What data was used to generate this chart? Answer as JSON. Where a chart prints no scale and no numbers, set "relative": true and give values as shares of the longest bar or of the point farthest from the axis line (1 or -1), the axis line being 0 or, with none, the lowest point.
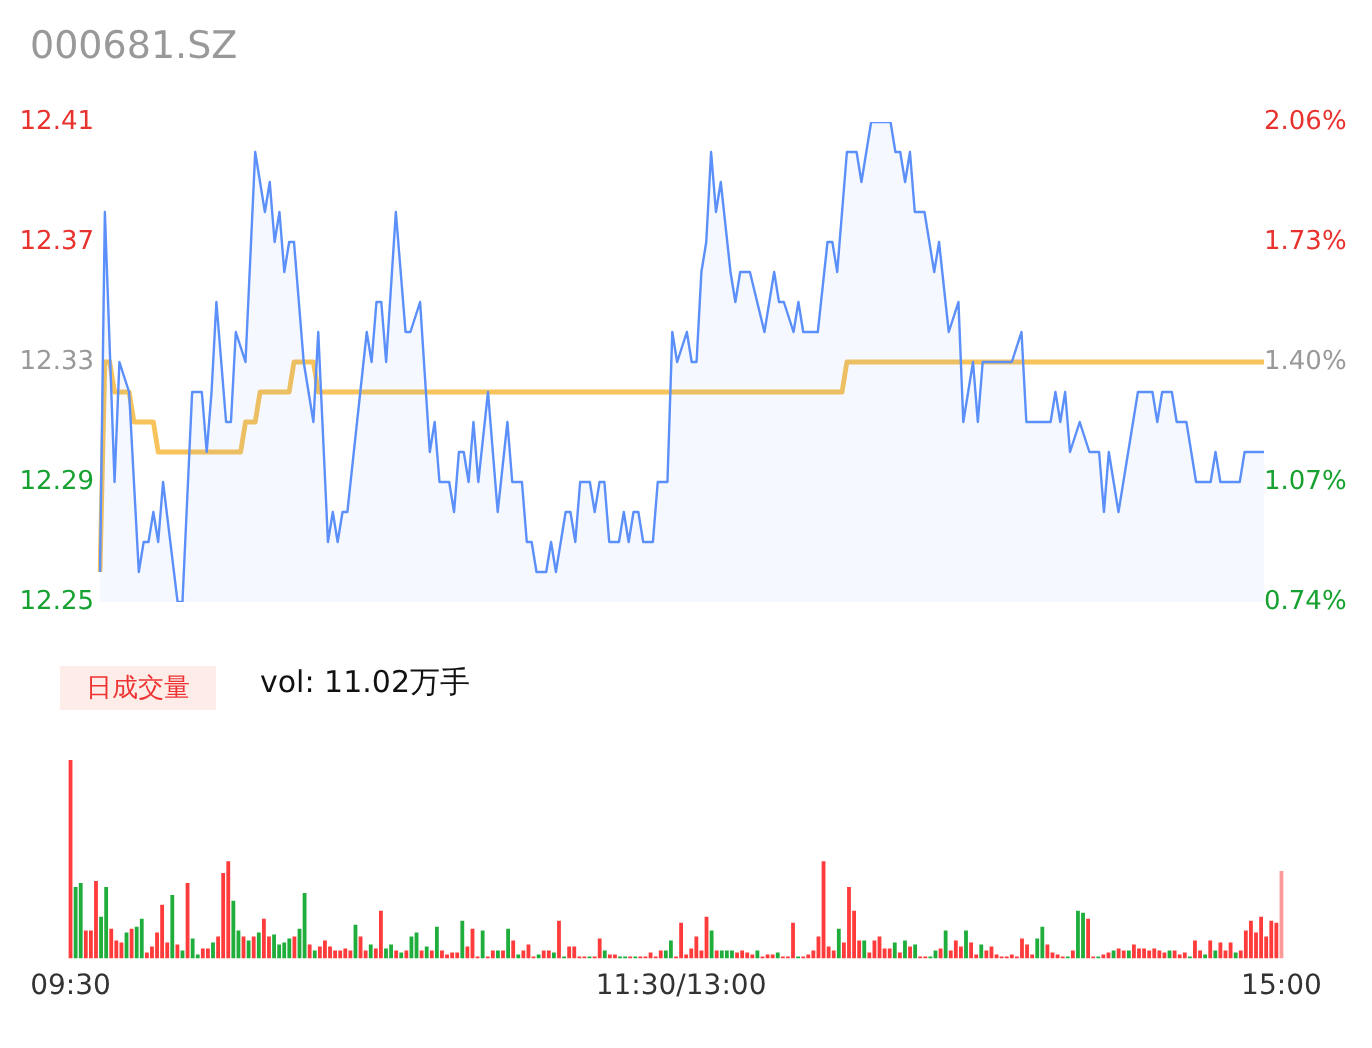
{
  "chart_data": [
    {
      "type": "area",
      "title": "000681.SZ",
      "marker": "none",
      "ylim": [
        12.25,
        12.41
      ],
      "yticks": [
        12.25,
        12.29,
        12.33,
        12.37,
        12.41
      ],
      "y2lim": [
        0.74,
        2.06
      ],
      "y2ticks": [
        {
          "value": 0.74,
          "label": "0.74%"
        },
        {
          "value": 1.07,
          "label": "1.07%"
        },
        {
          "value": 1.4,
          "label": "1.40%"
        },
        {
          "value": 1.73,
          "label": "1.73%"
        },
        {
          "value": 2.06,
          "label": "2.06%"
        }
      ],
      "tick_labels": "y",
      "categories": [
        null,
        null,
        null,
        null,
        null,
        null,
        null,
        null,
        null,
        null,
        null,
        null,
        null,
        null,
        null,
        null,
        null,
        null,
        null,
        null,
        null,
        null,
        null,
        null,
        null,
        null,
        null,
        null,
        null,
        null,
        null,
        null,
        null,
        null,
        null,
        null,
        null,
        null,
        null,
        null,
        null,
        null,
        null,
        null,
        null,
        null,
        null,
        null,
        null,
        null,
        null,
        null,
        null,
        null,
        null,
        null,
        null,
        null,
        null,
        null,
        null,
        null,
        null,
        null,
        null,
        null,
        null,
        null,
        null,
        null,
        null,
        null,
        null,
        null,
        null,
        null,
        null,
        null,
        null,
        null,
        null,
        null,
        null,
        null,
        null,
        null,
        null,
        null,
        null,
        null,
        null,
        null,
        null,
        null,
        null,
        null,
        null,
        null,
        null,
        null,
        null,
        null,
        null,
        null,
        null,
        null,
        null,
        null,
        null,
        null,
        null,
        null,
        null,
        null,
        null,
        null,
        null,
        null,
        null,
        null,
        null,
        null,
        null,
        null,
        null,
        null,
        null,
        null,
        null,
        null,
        null,
        null,
        null,
        null,
        null,
        null,
        null,
        null,
        null,
        null,
        null,
        null,
        null,
        null,
        null,
        null,
        null,
        null,
        null,
        null,
        null,
        null,
        null,
        null,
        null,
        null,
        null,
        null,
        null,
        null,
        null,
        null,
        null,
        null,
        null,
        null,
        null,
        null,
        null,
        null,
        null,
        null,
        null,
        null,
        null,
        null,
        null,
        null,
        null,
        null,
        null,
        null,
        null,
        null,
        null,
        null,
        null,
        null,
        null,
        null,
        null,
        null,
        null,
        null,
        null,
        null,
        null,
        null,
        null,
        null,
        null,
        null,
        null,
        null,
        null,
        null,
        null,
        null,
        null,
        null,
        null,
        null,
        null,
        null,
        null,
        null,
        null,
        null,
        null,
        null,
        null,
        null,
        null,
        null,
        null,
        null,
        null,
        null,
        null,
        null,
        null,
        null,
        null,
        null,
        null,
        null,
        null,
        null,
        null,
        null,
        null
      ],
      "series": [
        {
          "type": "area",
          "color": "#5b8ff9",
          "values": [
            12.26,
            12.38,
            null,
            12.29,
            12.33,
            null,
            12.32,
            null,
            12.26,
            12.27,
            12.27,
            12.28,
            12.27,
            12.29,
            null,
            null,
            12.25,
            12.25,
            null,
            12.32,
            null,
            12.32,
            12.3,
            12.32,
            12.35,
            null,
            12.31,
            12.31,
            12.34,
            null,
            12.33,
            null,
            12.4,
            null,
            12.38,
            12.39,
            12.37,
            12.38,
            12.36,
            12.37,
            12.37,
            null,
            12.33,
            null,
            12.31,
            12.34,
            null,
            12.27,
            12.28,
            12.27,
            12.28,
            12.28,
            null,
            null,
            null,
            12.34,
            12.33,
            12.35,
            12.35,
            12.33,
            null,
            12.38,
            null,
            12.34,
            12.34,
            null,
            12.35,
            null,
            12.3,
            12.31,
            12.29,
            null,
            12.29,
            12.28,
            12.3,
            12.3,
            12.29,
            12.31,
            12.29,
            null,
            12.32,
            null,
            12.28,
            null,
            12.31,
            12.29,
            null,
            12.29,
            12.27,
            12.27,
            12.26,
            null,
            12.26,
            12.27,
            12.26,
            null,
            12.28,
            12.28,
            12.27,
            12.29,
            null,
            12.29,
            12.28,
            12.29,
            12.29,
            12.27,
            null,
            12.27,
            12.28,
            12.27,
            12.28,
            12.28,
            12.27,
            null,
            12.27,
            12.29,
            null,
            12.29,
            12.34,
            12.33,
            null,
            12.34,
            12.33,
            12.33,
            12.36,
            12.37,
            12.4,
            12.38,
            12.39,
            null,
            12.36,
            12.35,
            12.36,
            null,
            12.36,
            null,
            null,
            12.34,
            null,
            12.36,
            12.35,
            12.35,
            null,
            12.34,
            12.35,
            12.34,
            null,
            null,
            12.34,
            null,
            12.37,
            12.37,
            12.36,
            null,
            12.4,
            null,
            12.4,
            12.39,
            null,
            12.41,
            null,
            null,
            null,
            12.41,
            12.4,
            12.4,
            12.39,
            12.4,
            12.38,
            null,
            12.38,
            12.37,
            12.36,
            12.37,
            null,
            12.34,
            null,
            12.35,
            12.31,
            null,
            12.33,
            12.31,
            12.33,
            null,
            null,
            null,
            null,
            null,
            12.33,
            null,
            12.34,
            12.31,
            null,
            null,
            null,
            null,
            12.31,
            12.32,
            12.31,
            12.32,
            12.3,
            null,
            12.31,
            null,
            12.3,
            null,
            12.3,
            12.28,
            12.3,
            null,
            12.28,
            null,
            12.3,
            null,
            12.32,
            null,
            null,
            12.32,
            12.31,
            12.32,
            null,
            12.32,
            12.31,
            null,
            12.31,
            null,
            12.29,
            null,
            null,
            12.29,
            12.3,
            12.29,
            null,
            null,
            null,
            12.29,
            12.3,
            null,
            null,
            null,
            12.3
          ]
        },
        {
          "type": "line",
          "color": "#f7c35a",
          "values": [
            12.26,
            12.33,
            12.33,
            12.32,
            null,
            null,
            12.32,
            12.31,
            null,
            null,
            null,
            12.31,
            12.3,
            null,
            null,
            null,
            null,
            null,
            null,
            null,
            null,
            null,
            null,
            null,
            null,
            null,
            null,
            null,
            null,
            12.3,
            12.31,
            null,
            12.31,
            12.32,
            null,
            null,
            null,
            null,
            null,
            12.32,
            12.33,
            null,
            null,
            null,
            12.33,
            12.32,
            null,
            null,
            null,
            null,
            null,
            null,
            null,
            null,
            null,
            null,
            null,
            null,
            null,
            null,
            null,
            null,
            null,
            null,
            null,
            null,
            null,
            null,
            null,
            null,
            null,
            null,
            null,
            null,
            null,
            null,
            null,
            null,
            null,
            null,
            null,
            null,
            null,
            null,
            null,
            null,
            null,
            null,
            null,
            null,
            null,
            null,
            null,
            null,
            null,
            null,
            null,
            null,
            null,
            null,
            null,
            null,
            null,
            null,
            null,
            null,
            null,
            null,
            null,
            null,
            null,
            null,
            null,
            null,
            null,
            null,
            null,
            null,
            null,
            null,
            null,
            null,
            null,
            null,
            null,
            null,
            null,
            null,
            null,
            null,
            null,
            null,
            null,
            null,
            null,
            null,
            null,
            null,
            null,
            null,
            null,
            null,
            null,
            null,
            null,
            null,
            null,
            null,
            null,
            null,
            null,
            null,
            null,
            12.32,
            12.33,
            null,
            null,
            null,
            null,
            null,
            null,
            null,
            null,
            null,
            null,
            null,
            null,
            null,
            null,
            null,
            null,
            null,
            null,
            null,
            null,
            null,
            null,
            null,
            null,
            null,
            null,
            null,
            null,
            null,
            null,
            null,
            null,
            null,
            null,
            null,
            null,
            null,
            null,
            null,
            null,
            null,
            null,
            null,
            null,
            null,
            null,
            null,
            null,
            null,
            null,
            null,
            null,
            null,
            null,
            null,
            null,
            null,
            null,
            null,
            null,
            null,
            null,
            null,
            null,
            null,
            null,
            null,
            null,
            null,
            null,
            null,
            null,
            null,
            null,
            null,
            null,
            null,
            null,
            null,
            null,
            null,
            null,
            null,
            null,
            null,
            12.33
          ]
        }
      ]
    },
    {
      "type": "bar",
      "relative": true,
      "tick_labels": "x",
      "annotations": [
        "日成交量",
        "vol: 11.02万手"
      ],
      "categories": [
        "09:30",
        null,
        null,
        null,
        null,
        null,
        null,
        null,
        null,
        null,
        null,
        null,
        null,
        null,
        null,
        null,
        null,
        null,
        null,
        null,
        null,
        null,
        null,
        null,
        null,
        null,
        null,
        null,
        null,
        null,
        null,
        null,
        null,
        null,
        null,
        null,
        null,
        null,
        null,
        null,
        null,
        null,
        null,
        null,
        null,
        null,
        null,
        null,
        null,
        null,
        null,
        null,
        null,
        null,
        null,
        null,
        null,
        null,
        null,
        null,
        null,
        null,
        null,
        null,
        null,
        null,
        null,
        null,
        null,
        null,
        null,
        null,
        null,
        null,
        null,
        null,
        null,
        null,
        null,
        null,
        null,
        null,
        null,
        null,
        null,
        null,
        null,
        null,
        null,
        null,
        null,
        null,
        null,
        null,
        null,
        null,
        null,
        null,
        null,
        null,
        null,
        null,
        null,
        null,
        null,
        null,
        null,
        null,
        null,
        null,
        null,
        null,
        null,
        null,
        null,
        null,
        null,
        null,
        null,
        null,
        "11:30/13:00",
        null,
        null,
        null,
        null,
        null,
        null,
        null,
        null,
        null,
        null,
        null,
        null,
        null,
        null,
        null,
        null,
        null,
        null,
        null,
        null,
        null,
        null,
        null,
        null,
        null,
        null,
        null,
        null,
        null,
        null,
        null,
        null,
        null,
        null,
        null,
        null,
        null,
        null,
        null,
        null,
        null,
        null,
        null,
        null,
        null,
        null,
        null,
        null,
        null,
        null,
        null,
        null,
        null,
        null,
        null,
        null,
        null,
        null,
        null,
        null,
        null,
        null,
        null,
        null,
        null,
        null,
        null,
        null,
        null,
        null,
        null,
        null,
        null,
        null,
        null,
        null,
        null,
        null,
        null,
        null,
        null,
        null,
        null,
        null,
        null,
        null,
        null,
        null,
        null,
        null,
        null,
        null,
        null,
        null,
        null,
        null,
        null,
        null,
        null,
        null,
        null,
        null,
        null,
        null,
        null,
        null,
        null,
        null,
        null,
        null,
        null,
        null,
        null,
        null,
        null,
        null,
        null,
        "15:00"
      ],
      "values": [
        1.0,
        0.36,
        0.38,
        0.14,
        0.14,
        0.39,
        0.21,
        0.36,
        0.15,
        0.09,
        0.08,
        0.13,
        0.15,
        0.16,
        0.2,
        0.03,
        0.06,
        0.13,
        0.27,
        0.08,
        0.32,
        0.07,
        0.04,
        0.38,
        0.1,
        0.02,
        0.05,
        0.05,
        0.08,
        0.11,
        0.43,
        0.49,
        0.29,
        0.14,
        0.11,
        0.09,
        0.11,
        0.13,
        0.2,
        0.11,
        0.12,
        0.07,
        0.08,
        0.1,
        0.11,
        0.15,
        0.33,
        0.07,
        0.04,
        0.06,
        0.09,
        0.06,
        0.04,
        0.04,
        0.05,
        0.04,
        0.17,
        0.11,
        0.04,
        0.07,
        0.05,
        0.24,
        0.05,
        0.07,
        0.04,
        0.03,
        0.04,
        0.11,
        0.13,
        0.04,
        0.06,
        0.04,
        0.16,
        0.04,
        0.02,
        0.03,
        0.03,
        0.19,
        0.06,
        0.15,
        0.01,
        0.14,
        0.01,
        0.04,
        0.04,
        0.04,
        0.15,
        0.09,
        0.02,
        0.04,
        0.07,
        0.01,
        0.02,
        0.04,
        0.04,
        0.03,
        0.19,
        0.01,
        0.06,
        0.06,
        0.01,
        0.01,
        0.01,
        0.01,
        0.1,
        0.04,
        0.02,
        0.02,
        0.01,
        0.01,
        0.01,
        0.01,
        0.01,
        0.01,
        0.03,
        0.01,
        0.04,
        0.04,
        0.09,
        0.01,
        0.18,
        0.02,
        0.05,
        0.11,
        0.04,
        0.21,
        0.14,
        0.04,
        0.04,
        0.04,
        0.04,
        0.03,
        0.04,
        0.03,
        0.02,
        0.04,
        0.01,
        0.02,
        0.02,
        0.03,
        0.01,
        0.01,
        0.18,
        0.01,
        0.01,
        0.02,
        0.04,
        0.11,
        0.49,
        0.06,
        0.04,
        0.15,
        0.08,
        0.36,
        0.24,
        0.09,
        0.09,
        0.03,
        0.09,
        0.11,
        0.05,
        0.05,
        0.08,
        0.03,
        0.09,
        0.06,
        0.07,
        0.01,
        0.01,
        0.01,
        0.04,
        0.05,
        0.14,
        0.04,
        0.09,
        0.06,
        0.14,
        0.08,
        0.02,
        0.07,
        0.04,
        0.06,
        0.02,
        0.01,
        0.01,
        0.02,
        0.01,
        0.1,
        0.07,
        0.02,
        0.1,
        0.16,
        0.07,
        0.03,
        0.02,
        0.01,
        0.01,
        0.04,
        0.24,
        0.23,
        0.2,
        0.01,
        0.01,
        0.02,
        0.03,
        0.04,
        0.05,
        0.04,
        0.04,
        0.07,
        0.05,
        0.05,
        0.04,
        0.05,
        0.04,
        0.03,
        0.04,
        0.04,
        0.02,
        0.03,
        0.01,
        0.09,
        0.04,
        0.02,
        0.09,
        0.04,
        0.08,
        0.04,
        0.08,
        0.03,
        0.04,
        0.14,
        0.19,
        0.13,
        0.21,
        0.11,
        0.19,
        0.18,
        0.44
      ],
      "colors": [
        "#ff3b3b",
        "#1fad3c",
        "#1fad3c",
        "#ff3b3b",
        "#ff3b3b",
        "#ff3b3b",
        "#1fad3c",
        "#1fad3c",
        "#ff3b3b",
        "#ff3b3b",
        "#ff3b3b",
        "#1fad3c",
        "#ff3b3b",
        "#1fad3c",
        "#1fad3c",
        "#ff3b3b",
        "#ff3b3b",
        "#ff3b3b",
        "#ff3b3b",
        "#ff3b3b",
        "#1fad3c",
        "#ff3b3b",
        "#1fad3c",
        "#ff3b3b",
        "#1fad3c",
        "#1fad3c",
        "#ff3b3b",
        "#ff3b3b",
        "#1fad3c",
        "#ff3b3b",
        "#ff3b3b",
        "#ff3b3b",
        "#1fad3c",
        "#1fad3c",
        "#ff3b3b",
        "#1fad3c",
        "#ff3b3b",
        "#1fad3c",
        "#ff3b3b",
        "#ff3b3b",
        "#1fad3c",
        "#1fad3c",
        "#1fad3c",
        "#1fad3c",
        "#ff3b3b",
        "#1fad3c",
        "#1fad3c",
        "#ff3b3b",
        "#1fad3c",
        "#ff3b3b",
        "#ff3b3b",
        "#ff3b3b",
        "#ff3b3b",
        "#ff3b3b",
        "#ff3b3b",
        "#ff3b3b",
        "#1fad3c",
        "#ff3b3b",
        "#ff3b3b",
        "#1fad3c",
        "#ff3b3b",
        "#ff3b3b",
        "#1fad3c",
        "#1fad3c",
        "#ff3b3b",
        "#1fad3c",
        "#ff3b3b",
        "#1fad3c",
        "#1fad3c",
        "#ff3b3b",
        "#1fad3c",
        "#ff3b3b",
        "#1fad3c",
        "#ff3b3b",
        "#ff3b3b",
        "#ff3b3b",
        "#ff3b3b",
        "#1fad3c",
        "#ff3b3b",
        "#ff3b3b",
        "#ff3b3b",
        "#1fad3c",
        "#ff3b3b",
        "#ff3b3b",
        "#1fad3c",
        "#ff3b3b",
        "#1fad3c",
        "#ff3b3b",
        "#1fad3c",
        "#ff3b3b",
        "#ff3b3b",
        "#ff3b3b",
        "#1fad3c",
        "#ff3b3b",
        "#ff3b3b",
        "#1fad3c",
        "#ff3b3b",
        "#1fad3c",
        "#ff3b3b",
        "#ff3b3b",
        "#ff3b3b",
        "#ff3b3b",
        "#1fad3c",
        "#ff3b3b",
        "#ff3b3b",
        "#1fad3c",
        "#ff3b3b",
        "#ff3b3b",
        "#1fad3c",
        "#1fad3c",
        "#ff3b3b",
        "#1fad3c",
        "#ff3b3b",
        "#ff3b3b",
        "#ff3b3b",
        "#ff3b3b",
        "#ff3b3b",
        "#1fad3c",
        "#1fad3c",
        "#ff3b3b",
        "#ff3b3b",
        "#ff3b3b",
        "#ff3b3b",
        "#ff3b3b",
        "#ff3b3b",
        "#ff3b3b",
        "#1fad3c",
        "#ff3b3b",
        "#1fad3c",
        "#1fad3c",
        "#1fad3c",
        "#ff3b3b",
        "#ff3b3b",
        "#ff3b3b",
        "#ff3b3b",
        "#1fad3c",
        "#ff3b3b",
        "#ff3b3b",
        "#ff3b3b",
        "#1fad3c",
        "#ff3b3b",
        "#ff3b3b",
        "#ff3b3b",
        "#1fad3c",
        "#ff3b3b",
        "#ff3b3b",
        "#ff3b3b",
        "#ff3b3b",
        "#ff3b3b",
        "#ff3b3b",
        "#ff3b3b",
        "#1fad3c",
        "#ff3b3b",
        "#ff3b3b",
        "#ff3b3b",
        "#ff3b3b",
        "#1fad3c",
        "#ff3b3b",
        "#ff3b3b",
        "#ff3b3b",
        "#ff3b3b",
        "#ff3b3b",
        "#1fad3c",
        "#ff3b3b",
        "#1fad3c",
        "#ff3b3b",
        "#1fad3c",
        "#ff3b3b",
        "#ff3b3b",
        "#1fad3c",
        "#1fad3c",
        "#ff3b3b",
        "#1fad3c",
        "#ff3b3b",
        "#ff3b3b",
        "#ff3b3b",
        "#1fad3c",
        "#ff3b3b",
        "#ff3b3b",
        "#1fad3c",
        "#ff3b3b",
        "#ff3b3b",
        "#ff3b3b",
        "#ff3b3b",
        "#ff3b3b",
        "#ff3b3b",
        "#ff3b3b",
        "#ff3b3b",
        "#ff3b3b",
        "#ff3b3b",
        "#1fad3c",
        "#1fad3c",
        "#ff3b3b",
        "#ff3b3b",
        "#ff3b3b",
        "#ff3b3b",
        "#1fad3c",
        "#ff3b3b",
        "#1fad3c",
        "#1fad3c",
        "#ff3b3b",
        "#ff3b3b",
        "#1fad3c",
        "#ff3b3b",
        "#ff3b3b",
        "#1fad3c",
        "#ff3b3b",
        "#ff3b3b",
        "#1fad3c",
        "#ff3b3b",
        "#ff3b3b",
        "#ff3b3b",
        "#ff3b3b",
        "#ff3b3b",
        "#ff3b3b",
        "#ff3b3b",
        "#1fad3c",
        "#ff3b3b",
        "#ff3b3b",
        "#ff3b3b",
        "#1fad3c",
        "#ff3b3b",
        "#ff3b3b",
        "#1fad3c",
        "#ff3b3b",
        "#1fad3c",
        "#ff3b3b",
        "#ff3b3b",
        "#ff3b3b",
        "#1fad3c",
        "#ff3b3b",
        "#ff3b3b",
        "#ff3b3b",
        "#ff3b3b",
        "#ff3b3b",
        "#ff3b3b",
        "#ff3b3b",
        "#ff3b3b",
        "#ff9a9a"
      ]
    }
  ]
}
